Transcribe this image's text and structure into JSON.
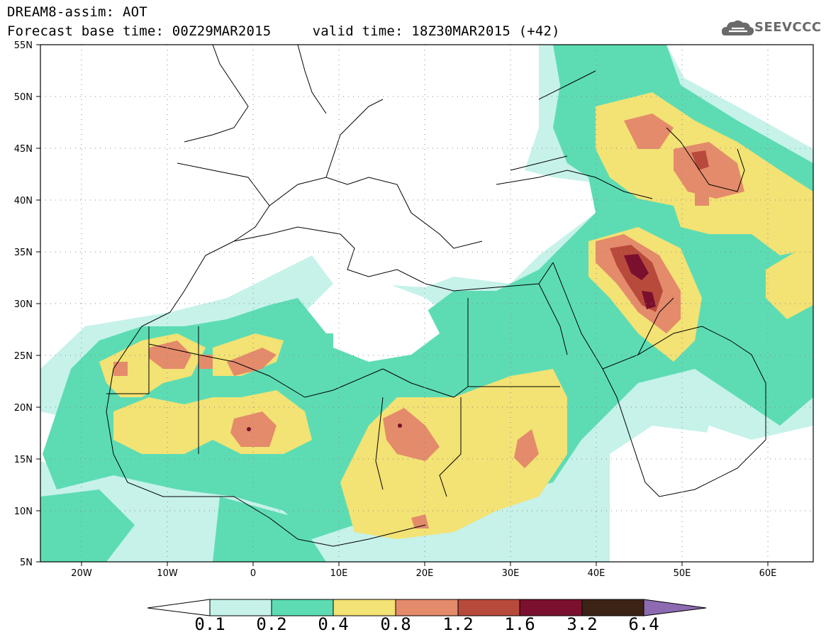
{
  "header": {
    "title": "DREAM8-assim: AOT",
    "subtitle": "Forecast base time: 00Z29MAR2015     valid time: 18Z30MAR2015 (+42)",
    "logo_text": "SEEVCCC"
  },
  "map": {
    "lat_labels": [
      "55N",
      "50N",
      "45N",
      "40N",
      "35N",
      "30N",
      "25N",
      "20N",
      "15N",
      "10N",
      "5N"
    ],
    "lon_labels": [
      "20W",
      "10W",
      "0",
      "10E",
      "20E",
      "30E",
      "40E",
      "50E",
      "60E"
    ],
    "extent": {
      "lon_min": -25,
      "lon_max": 65,
      "lat_min": 5,
      "lat_max": 55
    }
  },
  "colorbar": {
    "labels": [
      "0.1",
      "0.2",
      "0.4",
      "0.8",
      "1.2",
      "1.6",
      "3.2",
      "6.4"
    ],
    "colors": [
      "#c6f2ea",
      "#5ddcb4",
      "#f3e274",
      "#e48b6b",
      "#b84a3c",
      "#7a0f2e",
      "#3d2316",
      "#8c6bb1"
    ]
  },
  "colors": {
    "aot_0_1": "#c6f2ea",
    "aot_0_2": "#5ddcb4",
    "aot_0_4": "#f3e274",
    "aot_0_8": "#e48b6b",
    "aot_1_2": "#b84a3c",
    "aot_1_6": "#7a0f2e",
    "logo_gray": "#6a6a6a"
  }
}
